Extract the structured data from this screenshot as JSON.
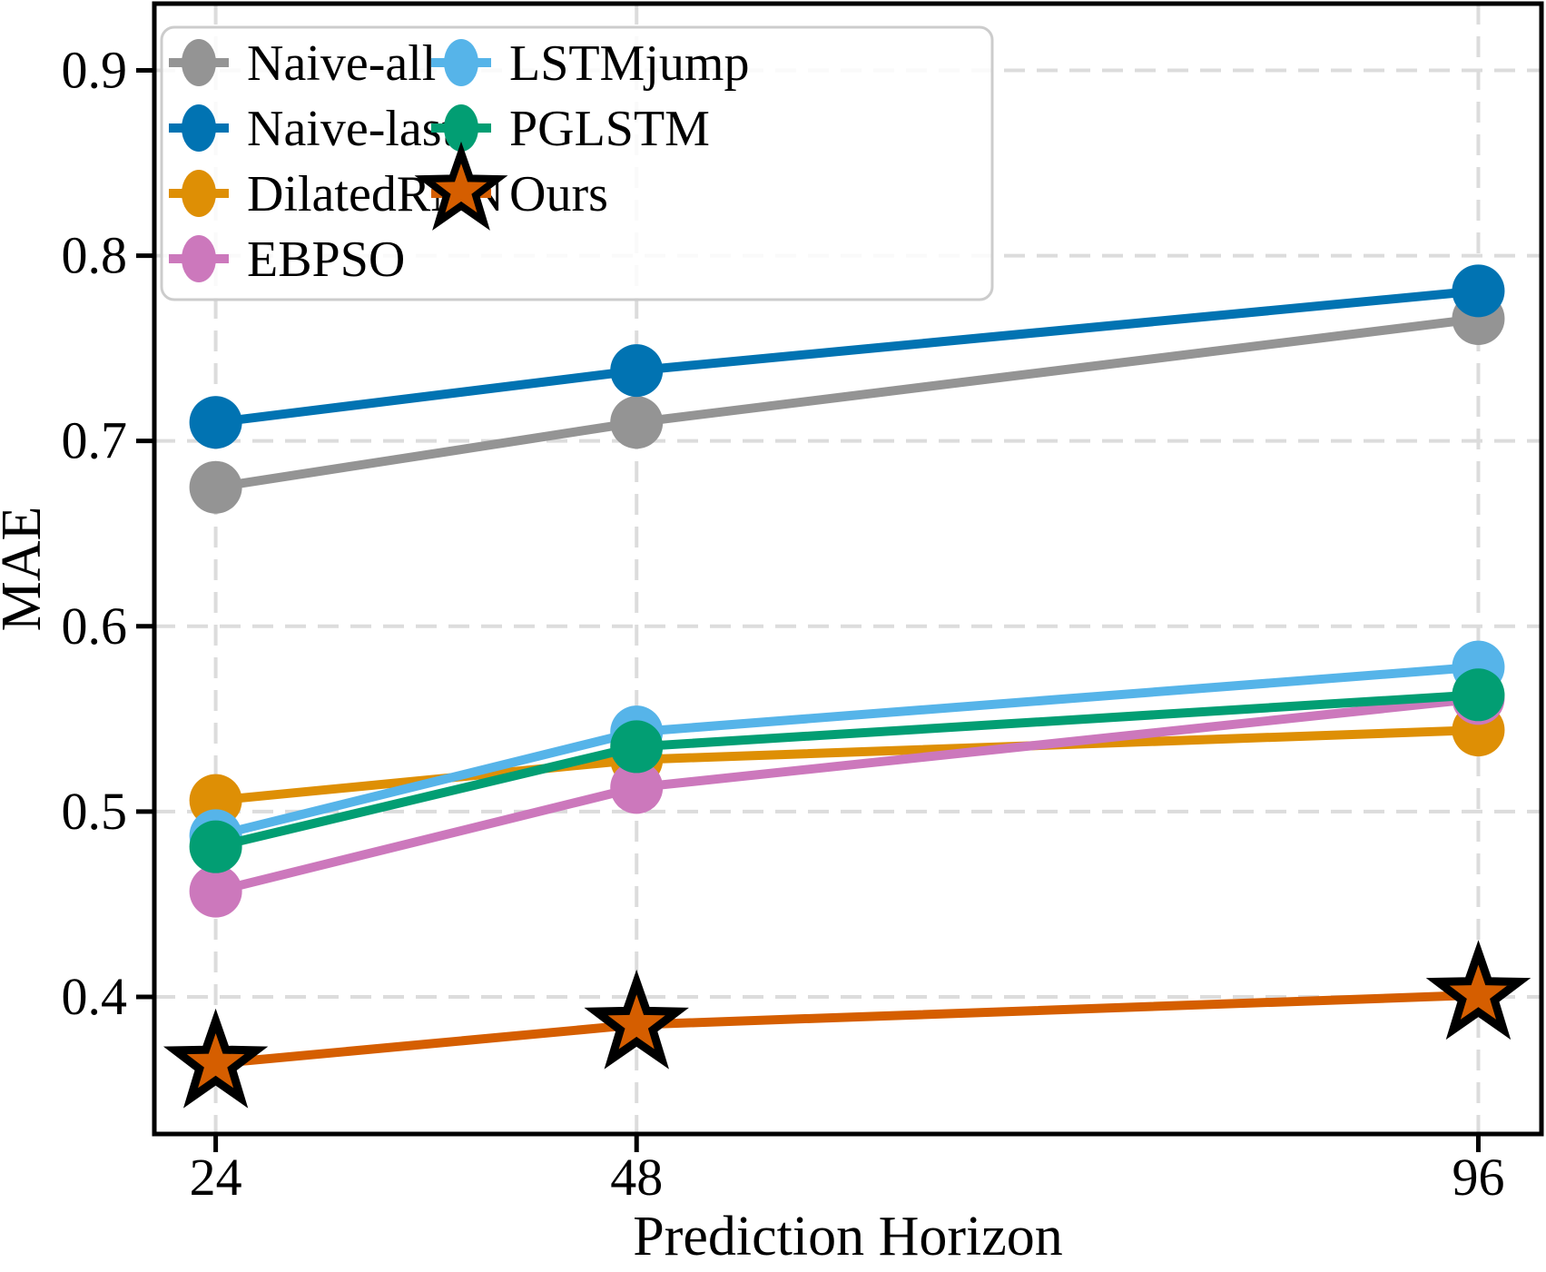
{
  "figure": {
    "background": "#FFFFFF",
    "axis_color": "#000000",
    "grid_color": "#DCDCDC",
    "legend_border_color": "#CCCCCC",
    "legend_fill": "rgba(255,255,255,0.85)"
  },
  "chart_data": {
    "type": "line",
    "title": "",
    "xlabel": "Prediction Horizon",
    "ylabel": "MAE",
    "x": [
      24,
      48,
      96
    ],
    "xticks": [
      24,
      48,
      96
    ],
    "xtick_labels": [
      "24",
      "48",
      "96"
    ],
    "yticks": [
      0.4,
      0.5,
      0.6,
      0.7,
      0.8,
      0.9
    ],
    "ytick_labels": [
      "0.4",
      "0.5",
      "0.6",
      "0.7",
      "0.8",
      "0.9"
    ],
    "xlim": [
      20.5,
      99.6
    ],
    "ylim": [
      0.326,
      0.936
    ],
    "grid": true,
    "grid_style": "dashed",
    "legend_position": "upper-left",
    "legend_columns": 2,
    "series": [
      {
        "name": "Naive-all",
        "color": "#949494",
        "marker": "circle",
        "values": [
          0.675,
          0.71,
          0.766
        ]
      },
      {
        "name": "Naive-last",
        "color": "#0173B2",
        "marker": "circle",
        "values": [
          0.71,
          0.738,
          0.781
        ]
      },
      {
        "name": "DilatedRNN",
        "color": "#DE8F05",
        "marker": "circle",
        "values": [
          0.506,
          0.528,
          0.544
        ]
      },
      {
        "name": "EBPSO",
        "color": "#CC78BC",
        "marker": "circle",
        "values": [
          0.457,
          0.513,
          0.561
        ]
      },
      {
        "name": "LSTMjump",
        "color": "#56B4E9",
        "marker": "circle",
        "values": [
          0.487,
          0.543,
          0.578
        ]
      },
      {
        "name": "PGLSTM",
        "color": "#029E73",
        "marker": "circle",
        "values": [
          0.481,
          0.535,
          0.563
        ]
      },
      {
        "name": "Ours",
        "color": "#D55E00",
        "marker": "star",
        "marker_edge": "#000000",
        "values": [
          0.364,
          0.385,
          0.401
        ]
      }
    ],
    "legend_column_assignment": [
      [
        "Naive-all",
        "Naive-last",
        "DilatedRNN",
        "EBPSO"
      ],
      [
        "LSTMjump",
        "PGLSTM",
        "Ours"
      ]
    ]
  }
}
